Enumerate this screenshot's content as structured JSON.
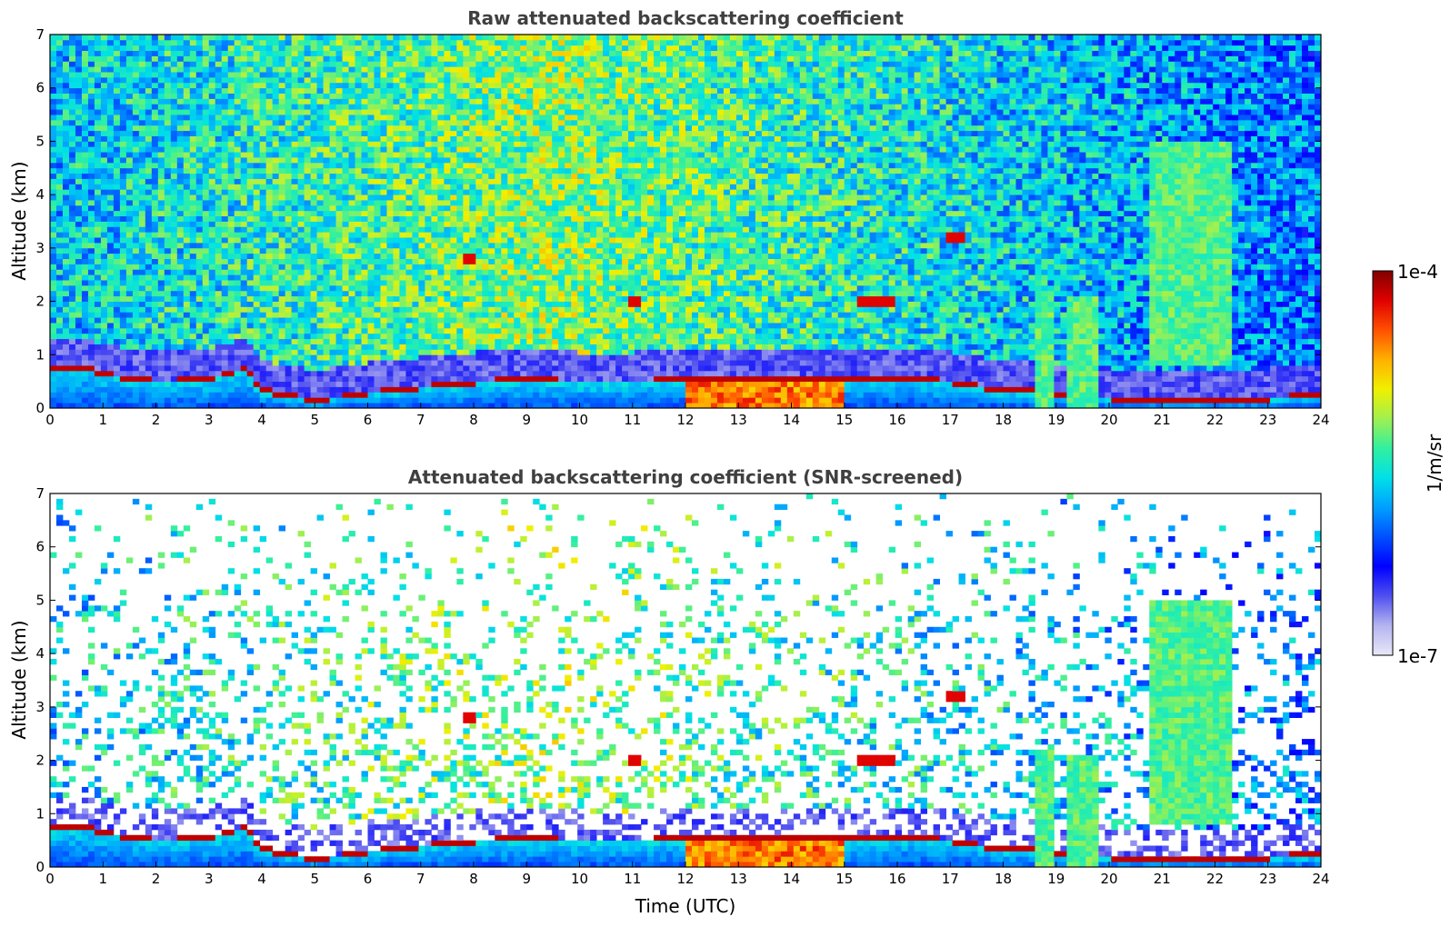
{
  "chart_data": [
    {
      "type": "heatmap",
      "title": "Raw attenuated backscattering coefficient",
      "xlabel": "",
      "ylabel": "Altitude (km)",
      "xlim": [
        0,
        24
      ],
      "ylim": [
        0,
        7
      ],
      "x_ticks": [
        "0",
        "1",
        "2",
        "3",
        "4",
        "5",
        "6",
        "7",
        "8",
        "9",
        "10",
        "11",
        "12",
        "13",
        "14",
        "15",
        "16",
        "17",
        "18",
        "19",
        "20",
        "21",
        "22",
        "23",
        "24"
      ],
      "y_ticks": [
        "0",
        "1",
        "2",
        "3",
        "4",
        "5",
        "6",
        "7"
      ],
      "grid": false,
      "features": {
        "boundary_layer_top_km": [
          [
            0,
            0.68
          ],
          [
            0.7,
            0.75
          ],
          [
            1,
            0.6
          ],
          [
            2,
            0.45
          ],
          [
            3,
            0.5
          ],
          [
            3.7,
            0.7
          ],
          [
            4,
            0.3
          ],
          [
            5,
            0.1
          ],
          [
            6,
            0.25
          ],
          [
            7,
            0.35
          ],
          [
            8,
            0.45
          ],
          [
            9,
            0.5
          ],
          [
            10,
            0.45
          ],
          [
            11,
            0.45
          ],
          [
            12,
            0.5
          ],
          [
            13,
            0.5
          ],
          [
            14,
            0.5
          ],
          [
            15,
            0.5
          ],
          [
            16,
            0.55
          ],
          [
            17,
            0.45
          ],
          [
            18,
            0.3
          ],
          [
            19,
            0.25
          ],
          [
            20,
            0.15
          ],
          [
            21,
            0.12
          ],
          [
            22,
            0.12
          ],
          [
            23,
            0.15
          ],
          [
            24,
            0.2
          ]
        ],
        "elevated_layers": [
          {
            "x_start": 7.8,
            "x_end": 8.0,
            "alt_km": 2.8
          },
          {
            "x_start": 10.9,
            "x_end": 11.2,
            "alt_km": 2.0
          },
          {
            "x_start": 15.2,
            "x_end": 16.0,
            "alt_km": 2.0
          },
          {
            "x_start": 16.9,
            "x_end": 17.3,
            "alt_km": 3.2
          }
        ],
        "cloud_columns": [
          {
            "x_start": 18.6,
            "x_end": 19.0,
            "alt_top_km": 2.2
          },
          {
            "x_start": 19.2,
            "x_end": 19.8,
            "alt_top_km": 2.1
          },
          {
            "x_start": 20.8,
            "x_end": 22.3,
            "alt_base_km": 0.8,
            "alt_top_km": 5.0
          }
        ]
      }
    },
    {
      "type": "heatmap",
      "title": "Attenuated backscattering coefficient (SNR-screened)",
      "xlabel": "Time (UTC)",
      "ylabel": "Altitude (km)",
      "xlim": [
        0,
        24
      ],
      "ylim": [
        0,
        7
      ],
      "x_ticks": [
        "0",
        "1",
        "2",
        "3",
        "4",
        "5",
        "6",
        "7",
        "8",
        "9",
        "10",
        "11",
        "12",
        "13",
        "14",
        "15",
        "16",
        "17",
        "18",
        "19",
        "20",
        "21",
        "22",
        "23",
        "24"
      ],
      "y_ticks": [
        "0",
        "1",
        "2",
        "3",
        "4",
        "5",
        "6",
        "7"
      ],
      "grid": false
    }
  ],
  "colorbar": {
    "label": "1/m/sr",
    "max_label": "1e-4",
    "min_label": "1e-7",
    "scale": "log",
    "colors": [
      "#e8e8f8",
      "#b4b4f0",
      "#5050f0",
      "#0000ff",
      "#0050ff",
      "#00a0ff",
      "#00e0e8",
      "#30f0a0",
      "#a0f050",
      "#f0f000",
      "#ffb000",
      "#ff5000",
      "#e00000",
      "#800000"
    ]
  }
}
